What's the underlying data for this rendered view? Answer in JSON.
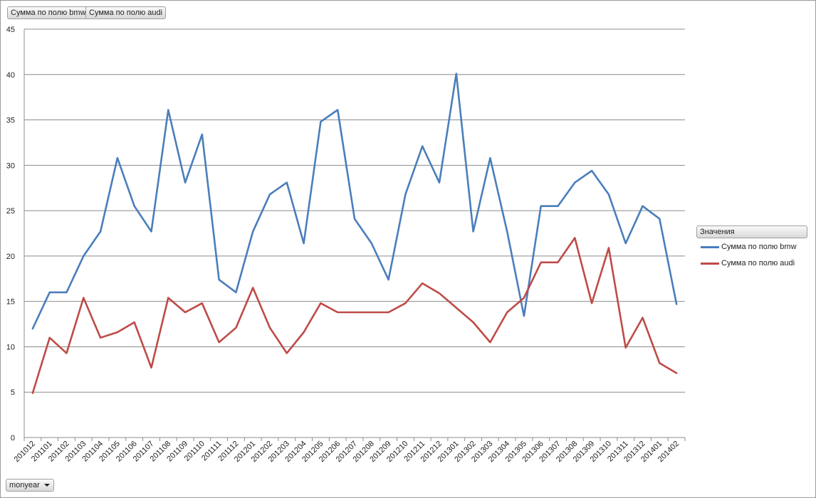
{
  "filter_buttons": {
    "bmw_label": "Сумма по полю bmw",
    "audi_label": "Сумма по полю audi"
  },
  "axis_field_button": "monyear",
  "legend": {
    "title": "Значения",
    "items": [
      "Сумма по полю bmw",
      "Сумма по полю audi"
    ]
  },
  "colors": {
    "bmw": "#4a7ebb",
    "audi": "#be4b48",
    "grid": "#8c8c8c"
  },
  "chart_data": {
    "type": "line",
    "categories": [
      "201012",
      "201101",
      "201102",
      "201103",
      "201104",
      "201105",
      "201106",
      "201107",
      "201108",
      "201109",
      "201110",
      "201111",
      "201112",
      "201201",
      "201202",
      "201203",
      "201204",
      "201205",
      "201206",
      "201207",
      "201208",
      "201209",
      "201210",
      "201211",
      "201212",
      "201301",
      "201302",
      "201303",
      "201304",
      "201305",
      "201306",
      "201307",
      "201308",
      "201309",
      "201310",
      "201311",
      "201312",
      "201401",
      "201402"
    ],
    "series": [
      {
        "name": "Сумма по полю bmw",
        "values": [
          12,
          16,
          16,
          20,
          22.7,
          30.8,
          25.5,
          22.7,
          36.1,
          28.1,
          33.4,
          17.4,
          16,
          22.7,
          26.8,
          28.1,
          21.4,
          34.8,
          36.1,
          24.1,
          21.4,
          17.4,
          26.8,
          32.1,
          28.1,
          40.1,
          22.7,
          30.8,
          22.7,
          13.4,
          25.5,
          25.5,
          28.1,
          29.4,
          26.8,
          21.4,
          25.5,
          24.1,
          14.7
        ]
      },
      {
        "name": "Сумма по полю audi",
        "values": [
          4.9,
          11,
          9.3,
          15.4,
          11,
          11.6,
          12.7,
          7.7,
          15.4,
          13.8,
          14.8,
          10.5,
          12.1,
          16.5,
          12.1,
          9.3,
          11.6,
          14.8,
          13.8,
          13.8,
          13.8,
          13.8,
          14.8,
          17,
          15.9,
          14.3,
          12.7,
          10.5,
          13.8,
          15.4,
          19.3,
          19.3,
          22,
          14.8,
          20.9,
          9.9,
          13.2,
          8.2,
          7.1
        ]
      }
    ],
    "ylim": [
      0,
      45
    ],
    "yticks": [
      0,
      5,
      10,
      15,
      20,
      25,
      30,
      35,
      40,
      45
    ],
    "grid": true,
    "legend_position": "right"
  }
}
